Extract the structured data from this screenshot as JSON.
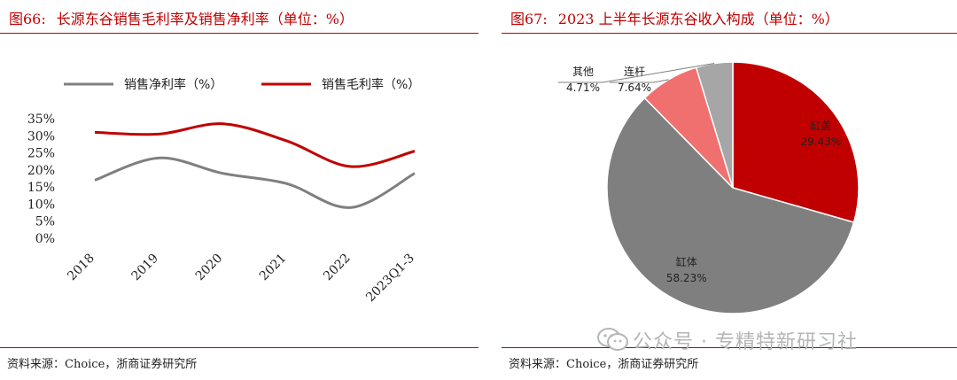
{
  "left": {
    "figure_num": "图66:",
    "title": "长源东谷销售毛利率及销售净利率（单位：%）",
    "source": "资料来源：Choice，浙商证券研究所"
  },
  "right": {
    "figure_num": "图67:",
    "title": "2023 上半年长源东谷收入构成（单位：%）",
    "source": "资料来源：Choice，浙商证券研究所"
  },
  "watermark": "公众号 · 专精特新研习社",
  "colors": {
    "accent": "#c00000",
    "net_line": "#7f7f7f",
    "gross_line": "#c00000"
  },
  "chart_data": [
    {
      "type": "line",
      "categories": [
        "2018",
        "2019",
        "2020",
        "2021",
        "2022",
        "2023Q1-3"
      ],
      "series": [
        {
          "name": "销售净利率（%）",
          "values": [
            17,
            23.5,
            19,
            16,
            9,
            19
          ],
          "color": "#7f7f7f"
        },
        {
          "name": "销售毛利率（%）",
          "values": [
            31,
            30.5,
            33.5,
            28.5,
            21,
            25.5
          ],
          "color": "#c00000"
        }
      ],
      "ylim": [
        0,
        35
      ],
      "yticks": [
        "0%",
        "5%",
        "10%",
        "15%",
        "20%",
        "25%",
        "30%",
        "35%"
      ],
      "grid": false,
      "legend": "top"
    },
    {
      "type": "pie",
      "slices": [
        {
          "label": "缸盖",
          "value": 29.43,
          "pct": "29.43%",
          "color": "#c00000"
        },
        {
          "label": "缸体",
          "value": 58.23,
          "pct": "58.23%",
          "color": "#7f7f7f"
        },
        {
          "label": "连杆",
          "value": 7.64,
          "pct": "7.64%",
          "color": "#f07070"
        },
        {
          "label": "其他",
          "value": 4.71,
          "pct": "4.71%",
          "color": "#a6a6a6"
        }
      ]
    }
  ]
}
